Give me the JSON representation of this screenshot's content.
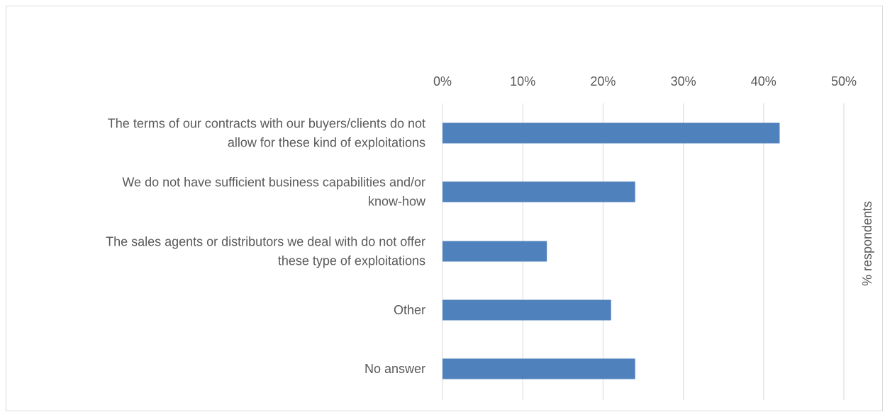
{
  "chart_data": {
    "type": "bar",
    "orientation": "horizontal",
    "categories": [
      [
        "The terms of our contracts with our buyers/clients do not",
        "allow for these kind of exploitations"
      ],
      [
        "We do not have sufficient business capabilities and/or",
        "know-how"
      ],
      [
        "The sales agents or distributors we deal with do not offer",
        "these type of exploitations"
      ],
      [
        "Other"
      ],
      [
        "No answer"
      ]
    ],
    "values": [
      42,
      24,
      13,
      21,
      24
    ],
    "xlim": [
      0,
      50
    ],
    "x_ticks": [
      "0%",
      "10%",
      "20%",
      "30%",
      "40%",
      "50%"
    ],
    "x_tick_values": [
      0,
      10,
      20,
      30,
      40,
      50
    ],
    "ylabel_secondary": "% respondents",
    "axis_position": "top",
    "grid": true,
    "legend": "none",
    "colors": {
      "bar": "#4f81bd",
      "grid": "#d9d9d9",
      "text": "#595959",
      "border": "#d9d9d9"
    }
  }
}
